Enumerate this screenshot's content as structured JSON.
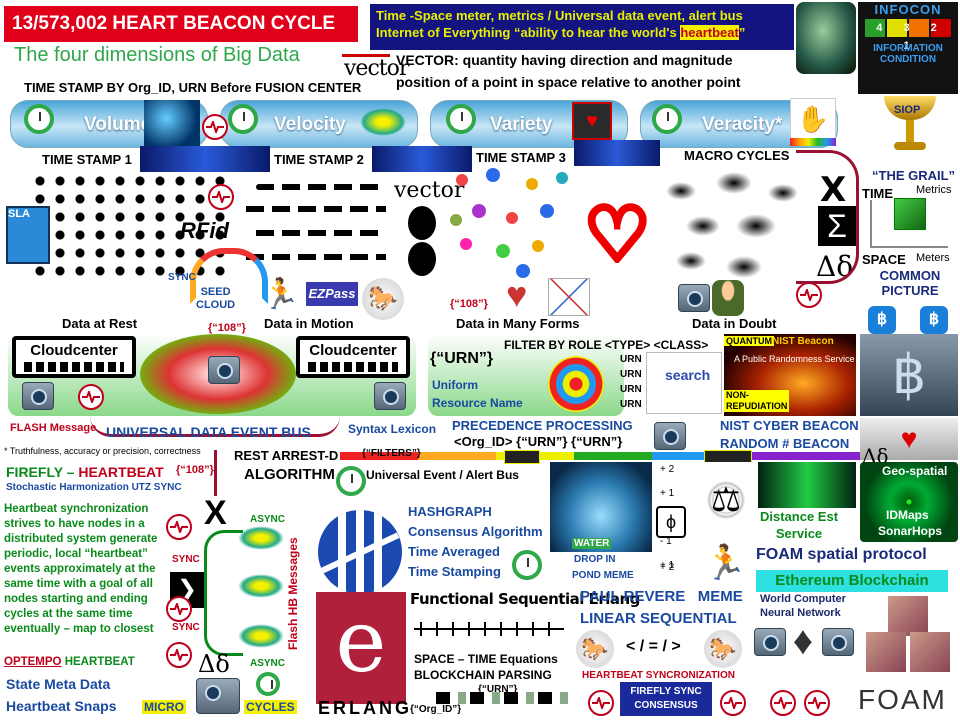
{
  "header": {
    "cycle_title": "13/573,002 HEART BEACON CYCLE",
    "banner_line1": "Time -Space meter, metrics   / Universal data event, alert bus",
    "banner_line2_prefix": "Internet of Everything  “ability to hear the world's ",
    "banner_line2_highlight": "heartbeat",
    "banner_line2_suffix": "”",
    "subtitle": "The four dimensions of Big Data",
    "vector_logo": "vector",
    "vector_def_line1": "VECTOR: quantity having direction and magnitude",
    "vector_def_line2": "position of a point in space relative to another point",
    "timestamp_org": "TIME STAMP BY Org_ID, URN Before FUSION CENTER"
  },
  "infocon": {
    "line1": "INFOCON",
    "digits": "4 3 2 1",
    "line3": "INFORMATION",
    "line4": "CONDITION",
    "siop": "SIOP",
    "grail": "“THE GRAIL”",
    "time": "TIME",
    "metrics": "Metrics",
    "space": "SPACE",
    "meters": "Meters",
    "common_picture": "COMMON PICTURE"
  },
  "dimensions": [
    "Volume",
    "Velocity",
    "Variety",
    "Veracity*"
  ],
  "timestamps": [
    "TIME STAMP 1",
    "TIME STAMP 2",
    "TIME STAMP 3"
  ],
  "macro_cycles": "MACRO CYCLES",
  "greek": {
    "chi": "X",
    "sigma": "Σ",
    "delta": "Δδ"
  },
  "row2": {
    "sla": "SLA",
    "rfid": "RFid",
    "vector2": "vector",
    "sync": "SYNC",
    "seed_cloud": "SEED\nCLOUD",
    "ezpass": "EZPass",
    "data_at_rest": "Data at Rest",
    "data_in_motion": "Data in Motion",
    "tag_108": "{“108”}",
    "data_many_forms": "Data in Many Forms",
    "data_in_doubt": "Data in Doubt"
  },
  "cloud": {
    "cloudcenter_left": "Cloudcenter",
    "cloudcenter_right": "Cloudcenter",
    "tag_108": "{“108”}",
    "flash_message": "FLASH Message",
    "bus": "UNIVERSAL DATA EVENT BUS",
    "truthfulness": "* Truthfulness, accuracy or precision, correctness",
    "syntax_lexicon": "Syntax Lexicon"
  },
  "urn": {
    "urn_tag": "{“URN”}",
    "uniform": "Uniform",
    "resource_name": "Resource Name",
    "filter_role": "FILTER BY ROLE <TYPE> <CLASS>",
    "urn_stack": [
      "URN",
      "URN",
      "URN",
      "URN"
    ],
    "search": "search",
    "precedence": "PRECEDENCE PROCESSING",
    "org_urn": "<Org_ID> {“URN”} {“URN”}",
    "quantum": "QUANTUM",
    "nist_beacon": "NIST Beacon",
    "randomness_service": "A Public Randomness Service",
    "non_repudiation": "NON-\nREPUDIATION",
    "nist_cyber": "NIST CYBER BEACON",
    "random_beacon": "RANDOM # BEACON"
  },
  "bottom_left": {
    "firefly": "FIREFLY – ",
    "heartbeat": "HEARTBEAT",
    "tag_108": "{“108”}",
    "stochastic": "Stochastic Harmonization UTZ SYNC",
    "paragraph": "Heartbeat synchronization strives to have nodes in a distributed system generate periodic, local “heartbeat” events approximately at the same time with a goal of all nodes starting and ending cycles at the same time eventually – map to closest",
    "optempo": "OPTEMPO",
    "heartbeat2": " HEARTBEAT",
    "state_meta": "State Meta Data",
    "heartbeat_snaps": "Heartbeat Snaps",
    "micro": "MICRO",
    "cycles": "CYCLES",
    "sync_labels": [
      "SYNC",
      "SYNC"
    ],
    "async_labels": [
      "ASYNC",
      "ASYNC"
    ],
    "flash_hb": "Flash HB Messages"
  },
  "rest": {
    "rest_arrest": "REST ARREST-D",
    "filters": "{“FILTERS”}",
    "algorithm": "ALGORITHM",
    "universal_event": "Universal Event / Alert Bus"
  },
  "hashgraph": {
    "hashgraph": "HASHGRAPH",
    "consensus": "Consensus Algorithm",
    "time_averaged": "Time Averaged",
    "time_stamping": "Time Stamping",
    "functional_erlang": "Functional Sequential Erlang",
    "erlang": "ERLANG",
    "space_time": "SPACE – TIME Equations",
    "blockchain_parsing": "BLOCKCHAIN PARSING",
    "urn_tag": "{“URN”}",
    "org_tag": "{“Org_ID”}"
  },
  "water": {
    "water": "WATER",
    "drop_in": "DROP IN",
    "pond_meme": "POND MEME",
    "scale": [
      "+ 2",
      "+ 1",
      "- 1",
      "+ 1",
      "+ 2"
    ],
    "phi": "ϕ"
  },
  "paul_revere": {
    "meme": "PAUL REVERE   MEME",
    "linear": "LINEAR SEQUENTIAL",
    "symbols": "< / = / >",
    "heartbeat_sync": "HEARTBEAT SYNCRONIZATION",
    "firefly_sync": "FIREFLY SYNC\nCONSENSUS"
  },
  "right_bottom": {
    "delta": "Δδ",
    "geo_spatial": "Geo-spatial",
    "idmaps": "IDMaps",
    "sonarhops": "SonarHops",
    "distance": "Distance Est\nService",
    "foam": "FOAM spatial protocol",
    "ethereum": "Ethereum Blockchain",
    "world_computer": "World Computer\nNeural Network",
    "foam_logo": "FOAM"
  },
  "colors": {
    "red": "#c0001a",
    "navy": "#1a2a7a",
    "green": "#0a8a1a",
    "panel_blue": "#4aa5d8",
    "yellow": "#f5f000"
  }
}
